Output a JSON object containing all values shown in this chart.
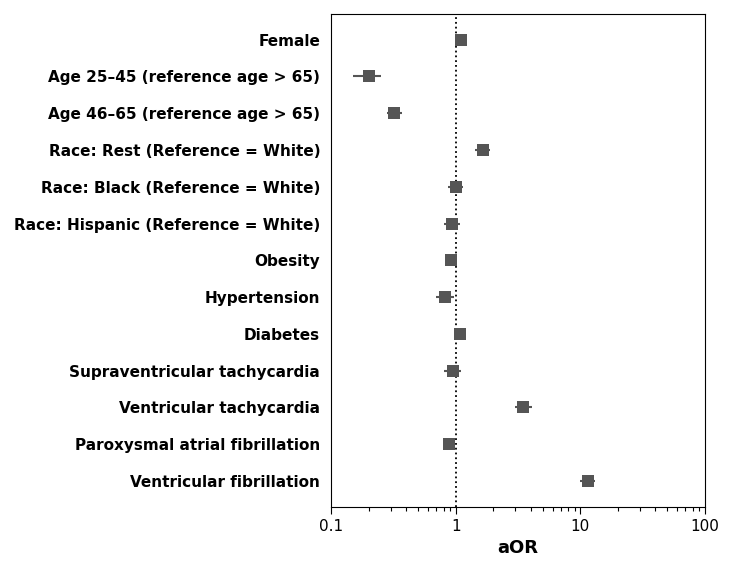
{
  "labels": [
    "Female",
    "Age 25–45 (reference age > 65)",
    "Age 46–65 (reference age > 65)",
    "Race: Rest (Reference = White)",
    "Race: Black (Reference = White)",
    "Race: Hispanic (Reference = White)",
    "Obesity",
    "Hypertension",
    "Diabetes",
    "Supraventricular tachycardia",
    "Ventricular tachycardia",
    "Paroxysmal atrial fibrillation",
    "Ventricular fibrillation"
  ],
  "or_values": [
    1.1,
    0.2,
    0.32,
    1.65,
    1.0,
    0.93,
    0.92,
    0.82,
    1.08,
    0.95,
    3.5,
    0.88,
    11.5
  ],
  "ci_low": [
    0.98,
    0.15,
    0.28,
    1.43,
    0.87,
    0.8,
    0.84,
    0.7,
    0.98,
    0.8,
    3.0,
    0.8,
    10.0
  ],
  "ci_high": [
    1.23,
    0.25,
    0.37,
    1.9,
    1.14,
    1.08,
    1.01,
    0.96,
    1.19,
    1.1,
    4.1,
    0.97,
    13.2
  ],
  "marker_color": "#555555",
  "marker_size": 9,
  "line_color": "#555555",
  "line_width": 1.5,
  "xlabel": "aOR",
  "xlabel_fontsize": 13,
  "tick_label_fontsize": 11,
  "label_fontsize": 11,
  "ref_line_x": 1.0,
  "xlim_low": 0.1,
  "xlim_high": 100,
  "xticks": [
    0.1,
    1,
    10,
    100
  ],
  "xtick_labels": [
    "0.1",
    "1",
    "10",
    "100"
  ],
  "background_color": "#ffffff",
  "spine_color": "#000000"
}
